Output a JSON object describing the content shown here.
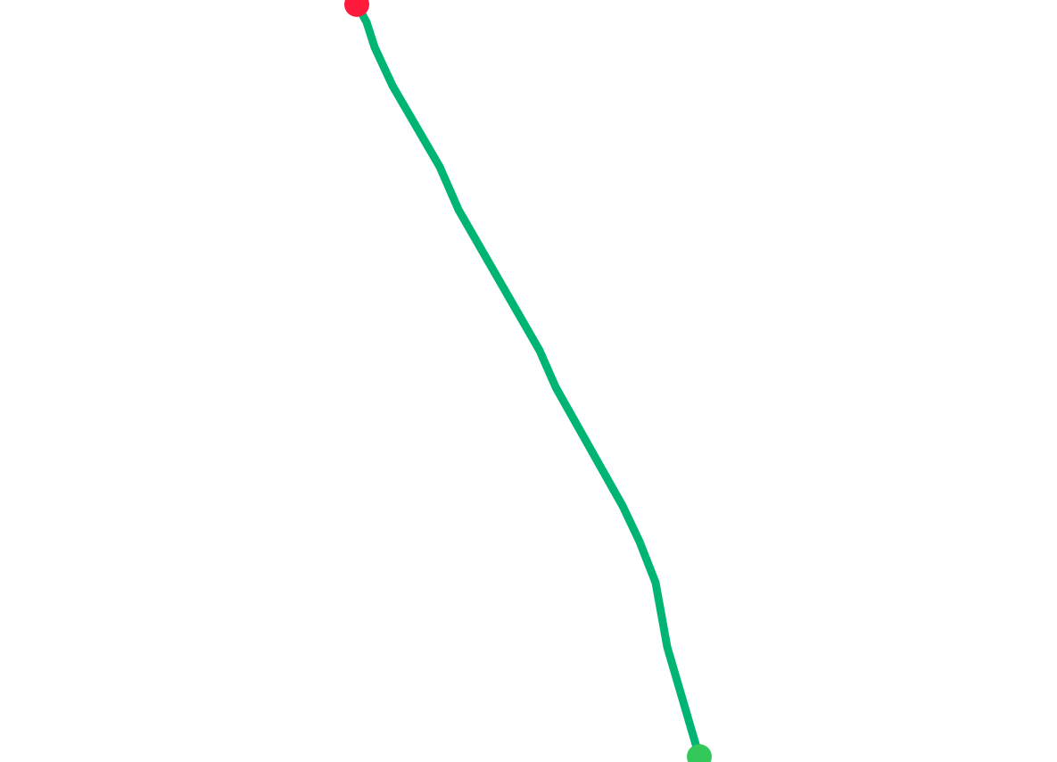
{
  "map": {
    "background_color": "#ffffff",
    "route": {
      "color": "#00b574"
    },
    "markers": {
      "start": {
        "icon": "start-marker-icon",
        "color": "#ff1a3c"
      },
      "end": {
        "icon": "end-marker-icon",
        "color": "#34c759"
      }
    }
  }
}
